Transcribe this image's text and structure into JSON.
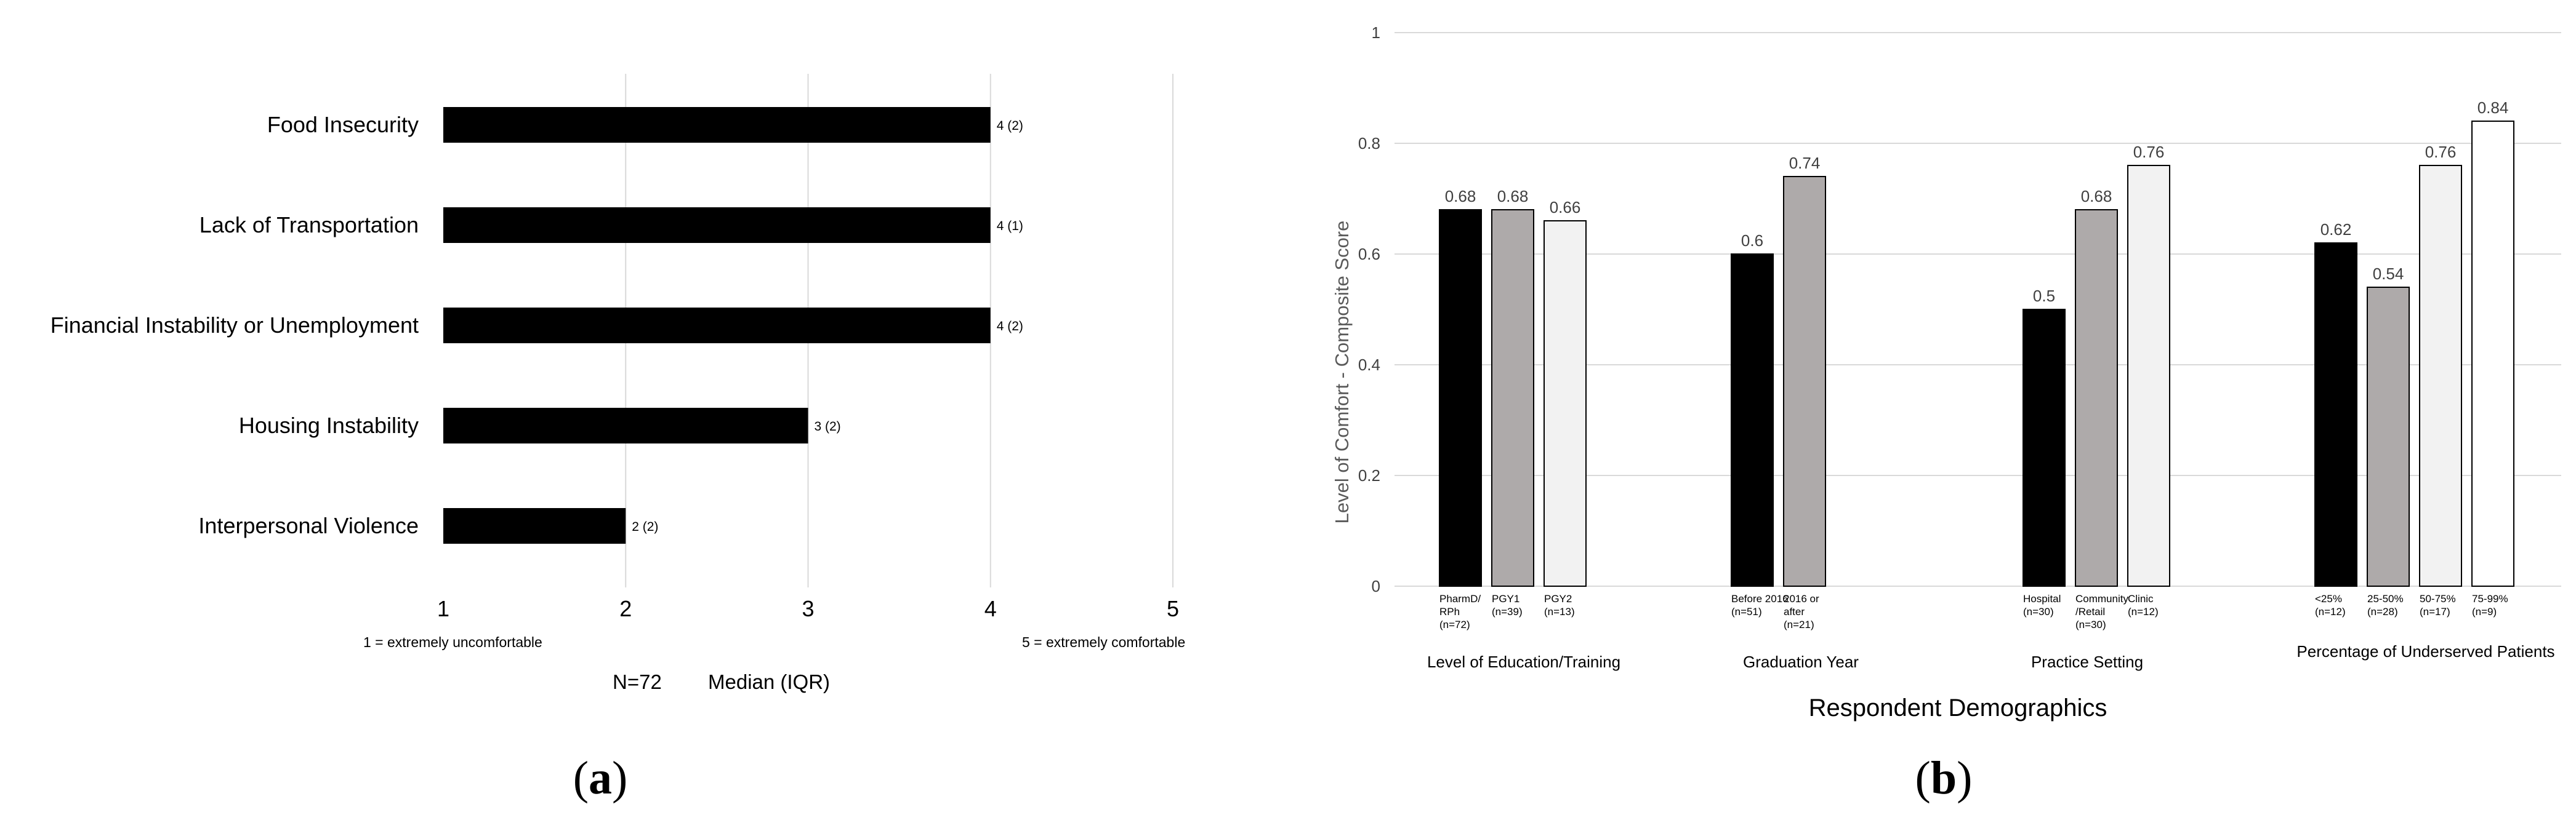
{
  "panel_a": {
    "label": "a",
    "legend_min": "1 = extremely uncomfortable",
    "legend_max": "5 = extremely comfortable",
    "n_label": "N=72",
    "stat_label": "Median (IQR)"
  },
  "panel_b": {
    "label": "b",
    "ylabel": "Level of Comfort  - Composite Score",
    "xlabel": "Respondent Demographics"
  },
  "colors": {
    "black": "#000000",
    "gray": "#aeaaaa",
    "light": "#f2f2f2",
    "white": "#ffffff",
    "grid": "#d9d9d9",
    "text": "#404040"
  },
  "chart_data": [
    {
      "type": "bar",
      "orientation": "horizontal",
      "categories": [
        "Food Insecurity",
        "Lack of Transportation",
        "Financial Instability or Unemployment",
        "Housing Instability",
        "Interpersonal Violence"
      ],
      "values": [
        4,
        4,
        4,
        3,
        2
      ],
      "data_labels": [
        "4 (2)",
        "4 (1)",
        "4 (2)",
        "3 (2)",
        "2 (2)"
      ],
      "xlim": [
        1,
        5
      ],
      "xticks": [
        "1",
        "2",
        "3",
        "4",
        "5"
      ],
      "grid": true
    },
    {
      "type": "bar",
      "ylim": [
        0,
        1
      ],
      "yticks": [
        "0",
        "0.2",
        "0.4",
        "0.6",
        "0.8",
        "1"
      ],
      "grid": true,
      "groups": [
        {
          "name": "Level of Education/Training",
          "bars": [
            {
              "label": [
                "PharmD/",
                "RPh",
                "(n=72)"
              ],
              "value": 0.68,
              "value_label": "0.68",
              "color": "black"
            },
            {
              "label": [
                "PGY1",
                "(n=39)"
              ],
              "value": 0.68,
              "value_label": "0.68",
              "color": "gray"
            },
            {
              "label": [
                "PGY2",
                "(n=13)"
              ],
              "value": 0.66,
              "value_label": "0.66",
              "color": "light"
            }
          ]
        },
        {
          "name": "Graduation Year",
          "bars": [
            {
              "label": [
                "Before 2016",
                "(n=51)"
              ],
              "value": 0.6,
              "value_label": "0.6",
              "color": "black"
            },
            {
              "label": [
                "2016 or",
                "after",
                "(n=21)"
              ],
              "value": 0.74,
              "value_label": "0.74",
              "color": "gray"
            }
          ]
        },
        {
          "name": "Practice Setting",
          "bars": [
            {
              "label": [
                "Hospital",
                "(n=30)"
              ],
              "value": 0.5,
              "value_label": "0.5",
              "color": "black"
            },
            {
              "label": [
                "Community",
                "/Retail",
                "(n=30)"
              ],
              "value": 0.68,
              "value_label": "0.68",
              "color": "gray"
            },
            {
              "label": [
                "Clinic",
                "(n=12)"
              ],
              "value": 0.76,
              "value_label": "0.76",
              "color": "light"
            }
          ]
        },
        {
          "name": "Percentage of Underserved Patients",
          "bars": [
            {
              "label": [
                "<25%",
                "(n=12)"
              ],
              "value": 0.62,
              "value_label": "0.62",
              "color": "black"
            },
            {
              "label": [
                "25-50%",
                "(n=28)"
              ],
              "value": 0.54,
              "value_label": "0.54",
              "color": "gray"
            },
            {
              "label": [
                "50-75%",
                "(n=17)"
              ],
              "value": 0.76,
              "value_label": "0.76",
              "color": "light"
            },
            {
              "label": [
                "75-99%",
                "(n=9)"
              ],
              "value": 0.84,
              "value_label": "0.84",
              "color": "white"
            }
          ]
        }
      ]
    }
  ]
}
